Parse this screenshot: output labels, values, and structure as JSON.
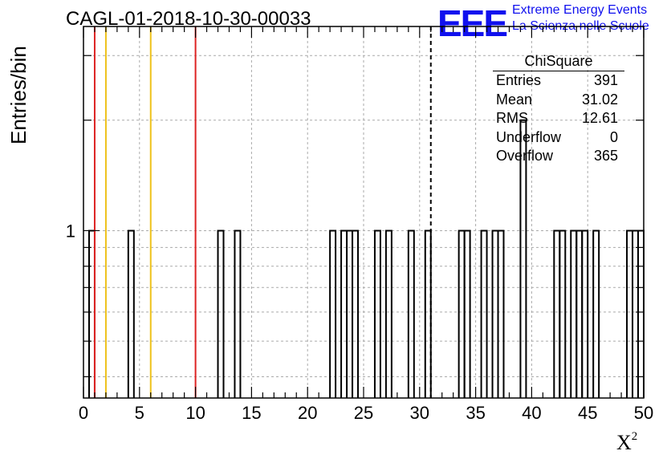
{
  "header": {
    "title": "CAGL-01-2018-10-30-00033",
    "logo_text": "EEE",
    "logo_line1": "Extreme Energy Events",
    "logo_line2": "La Scienza nelle Scuole"
  },
  "stats_box": {
    "title": "ChiSquare",
    "rows": [
      {
        "label": "Entries",
        "value": "391"
      },
      {
        "label": "Mean",
        "value": "31.02"
      },
      {
        "label": "RMS",
        "value": "12.61"
      },
      {
        "label": "Underflow",
        "value": "0"
      },
      {
        "label": "Overflow",
        "value": "365"
      }
    ]
  },
  "chart_data": {
    "type": "histogram",
    "xlabel": "X",
    "xlabel_sup": "2",
    "ylabel": "Entries/bin",
    "xlim": [
      0,
      50
    ],
    "y_scale": "log",
    "ylim": [
      0.35,
      3.6
    ],
    "x_ticks": [
      "0",
      "5",
      "10",
      "15",
      "20",
      "25",
      "30",
      "35",
      "40",
      "45",
      "50"
    ],
    "y_tick_labels": [
      "1"
    ],
    "bin_width": 0.5,
    "grid": true,
    "bins": [
      {
        "x": 0.5,
        "y": 1
      },
      {
        "x": 4,
        "y": 1
      },
      {
        "x": 12,
        "y": 1
      },
      {
        "x": 13.5,
        "y": 1
      },
      {
        "x": 22,
        "y": 1
      },
      {
        "x": 23,
        "y": 1
      },
      {
        "x": 23.5,
        "y": 1
      },
      {
        "x": 24,
        "y": 1
      },
      {
        "x": 26,
        "y": 1
      },
      {
        "x": 27,
        "y": 1
      },
      {
        "x": 29,
        "y": 1
      },
      {
        "x": 30.5,
        "y": 1
      },
      {
        "x": 33.5,
        "y": 1
      },
      {
        "x": 34,
        "y": 1
      },
      {
        "x": 35.5,
        "y": 1
      },
      {
        "x": 36.5,
        "y": 1
      },
      {
        "x": 37,
        "y": 1
      },
      {
        "x": 39,
        "y": 2
      },
      {
        "x": 42,
        "y": 1
      },
      {
        "x": 42.5,
        "y": 1
      },
      {
        "x": 43.5,
        "y": 1
      },
      {
        "x": 44,
        "y": 1
      },
      {
        "x": 44.5,
        "y": 1
      },
      {
        "x": 45.5,
        "y": 1
      },
      {
        "x": 48.5,
        "y": 1
      },
      {
        "x": 49,
        "y": 1
      },
      {
        "x": 49.5,
        "y": 1
      }
    ],
    "vertical_lines": [
      {
        "x": 1,
        "color": "#dd2222",
        "style": "solid"
      },
      {
        "x": 2,
        "color": "#eec21a",
        "style": "solid"
      },
      {
        "x": 6,
        "color": "#eec21a",
        "style": "solid"
      },
      {
        "x": 10,
        "color": "#dd2222",
        "style": "solid"
      },
      {
        "x": 31,
        "color": "#000000",
        "style": "dashed"
      }
    ]
  }
}
